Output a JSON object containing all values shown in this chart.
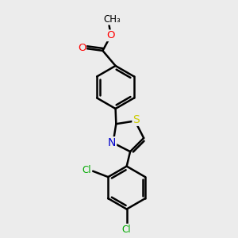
{
  "background_color": "#ececec",
  "bond_color": "#000000",
  "bond_width": 1.8,
  "atom_colors": {
    "O": "#ff0000",
    "N": "#0000cc",
    "S": "#cccc00",
    "Cl": "#00aa00",
    "C": "#000000"
  },
  "font_size": 8.5,
  "figsize": [
    3.0,
    3.0
  ],
  "dpi": 100
}
